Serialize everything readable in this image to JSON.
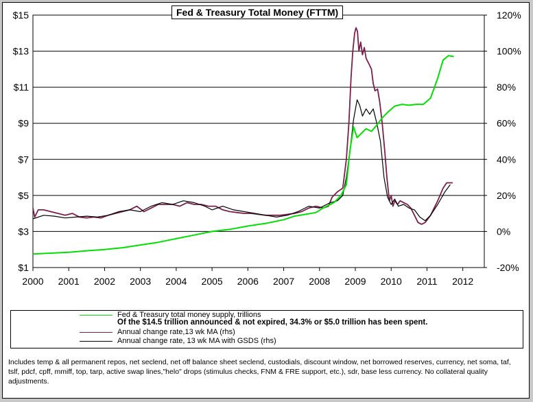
{
  "chart_data": {
    "type": "line",
    "title": "Fed & Treasury Total Money (FTTM)",
    "y_left": {
      "ylim": [
        1,
        15
      ],
      "ticks": [
        "$1",
        "$3",
        "$5",
        "$7",
        "$9",
        "$11",
        "$13",
        "$15"
      ],
      "tick_values": [
        1,
        3,
        5,
        7,
        9,
        11,
        13,
        15
      ]
    },
    "y_right": {
      "ylim": [
        -20,
        120
      ],
      "ticks": [
        "-20%",
        "0%",
        "20%",
        "40%",
        "60%",
        "80%",
        "100%",
        "120%"
      ],
      "tick_values": [
        -20,
        0,
        20,
        40,
        60,
        80,
        100,
        120
      ]
    },
    "x": {
      "xlim": [
        2000,
        2012.6
      ],
      "ticks": [
        "2000",
        "2001",
        "2002",
        "2003",
        "2004",
        "2005",
        "2006",
        "2007",
        "2008",
        "2009",
        "2010",
        "2011",
        "2012"
      ],
      "tick_values": [
        2000,
        2001,
        2002,
        2003,
        2004,
        2005,
        2006,
        2007,
        2008,
        2009,
        2010,
        2011,
        2012
      ]
    },
    "grid": true,
    "series": [
      {
        "name": "Fed & Treasury total money supply, trillions",
        "axis": "left",
        "color": "#00e000",
        "points": [
          [
            2000,
            1.75
          ],
          [
            2000.5,
            1.8
          ],
          [
            2001,
            1.85
          ],
          [
            2001.5,
            1.93
          ],
          [
            2002,
            2.0
          ],
          [
            2002.5,
            2.1
          ],
          [
            2003,
            2.25
          ],
          [
            2003.5,
            2.4
          ],
          [
            2004,
            2.6
          ],
          [
            2004.5,
            2.8
          ],
          [
            2005,
            3.0
          ],
          [
            2005.5,
            3.12
          ],
          [
            2006,
            3.3
          ],
          [
            2006.5,
            3.45
          ],
          [
            2007,
            3.65
          ],
          [
            2007.3,
            3.85
          ],
          [
            2007.6,
            3.95
          ],
          [
            2007.9,
            4.05
          ],
          [
            2008.1,
            4.3
          ],
          [
            2008.4,
            4.6
          ],
          [
            2008.6,
            5.0
          ],
          [
            2008.75,
            5.6
          ],
          [
            2008.85,
            7.5
          ],
          [
            2008.95,
            8.8
          ],
          [
            2009.05,
            8.2
          ],
          [
            2009.15,
            8.4
          ],
          [
            2009.3,
            8.7
          ],
          [
            2009.45,
            8.55
          ],
          [
            2009.6,
            8.9
          ],
          [
            2009.75,
            9.3
          ],
          [
            2009.9,
            9.6
          ],
          [
            2010.1,
            9.95
          ],
          [
            2010.3,
            10.05
          ],
          [
            2010.5,
            10.0
          ],
          [
            2010.7,
            10.05
          ],
          [
            2010.9,
            10.05
          ],
          [
            2011.1,
            10.4
          ],
          [
            2011.3,
            11.5
          ],
          [
            2011.45,
            12.5
          ],
          [
            2011.6,
            12.75
          ],
          [
            2011.75,
            12.7
          ]
        ]
      },
      {
        "name": "Annual change rate,13 wk MA (rhs)",
        "axis": "right",
        "color": "#7b1e4a",
        "points": [
          [
            2000,
            13
          ],
          [
            2000.05,
            8
          ],
          [
            2000.15,
            12
          ],
          [
            2000.3,
            12
          ],
          [
            2000.5,
            11
          ],
          [
            2000.7,
            10
          ],
          [
            2000.9,
            9
          ],
          [
            2001.1,
            10
          ],
          [
            2001.3,
            8
          ],
          [
            2001.5,
            7.5
          ],
          [
            2001.7,
            8
          ],
          [
            2001.9,
            7.5
          ],
          [
            2002.1,
            9
          ],
          [
            2002.3,
            10
          ],
          [
            2002.5,
            11
          ],
          [
            2002.7,
            12
          ],
          [
            2002.9,
            14
          ],
          [
            2003.1,
            11
          ],
          [
            2003.3,
            13
          ],
          [
            2003.5,
            15
          ],
          [
            2003.7,
            15
          ],
          [
            2003.9,
            15
          ],
          [
            2004.1,
            14
          ],
          [
            2004.3,
            16
          ],
          [
            2004.5,
            15
          ],
          [
            2004.7,
            15
          ],
          [
            2004.9,
            14
          ],
          [
            2005.1,
            14
          ],
          [
            2005.3,
            12
          ],
          [
            2005.5,
            11
          ],
          [
            2005.7,
            10.5
          ],
          [
            2005.9,
            10
          ],
          [
            2006.1,
            10
          ],
          [
            2006.3,
            9.5
          ],
          [
            2006.5,
            9
          ],
          [
            2006.7,
            9
          ],
          [
            2006.9,
            9
          ],
          [
            2007.1,
            9.5
          ],
          [
            2007.3,
            10
          ],
          [
            2007.5,
            11
          ],
          [
            2007.7,
            13
          ],
          [
            2007.9,
            14
          ],
          [
            2008.1,
            13
          ],
          [
            2008.25,
            14
          ],
          [
            2008.35,
            19
          ],
          [
            2008.5,
            22
          ],
          [
            2008.65,
            24
          ],
          [
            2008.75,
            40
          ],
          [
            2008.82,
            60
          ],
          [
            2008.88,
            85
          ],
          [
            2008.93,
            100
          ],
          [
            2008.98,
            110
          ],
          [
            2009.02,
            113
          ],
          [
            2009.06,
            111
          ],
          [
            2009.1,
            100
          ],
          [
            2009.15,
            105
          ],
          [
            2009.2,
            98
          ],
          [
            2009.25,
            102
          ],
          [
            2009.3,
            96
          ],
          [
            2009.38,
            93
          ],
          [
            2009.45,
            90
          ],
          [
            2009.5,
            82
          ],
          [
            2009.55,
            78
          ],
          [
            2009.62,
            79
          ],
          [
            2009.68,
            72
          ],
          [
            2009.75,
            60
          ],
          [
            2009.82,
            45
          ],
          [
            2009.88,
            30
          ],
          [
            2009.95,
            17
          ],
          [
            2010.0,
            20
          ],
          [
            2010.05,
            14
          ],
          [
            2010.1,
            17
          ],
          [
            2010.18,
            15
          ],
          [
            2010.25,
            17
          ],
          [
            2010.35,
            16
          ],
          [
            2010.45,
            15
          ],
          [
            2010.55,
            13
          ],
          [
            2010.65,
            9
          ],
          [
            2010.75,
            5
          ],
          [
            2010.85,
            4
          ],
          [
            2010.95,
            5
          ],
          [
            2011.1,
            9
          ],
          [
            2011.3,
            17
          ],
          [
            2011.45,
            24
          ],
          [
            2011.55,
            27
          ],
          [
            2011.65,
            27
          ],
          [
            2011.72,
            27
          ]
        ]
      },
      {
        "name": "Annual change rate, 13 wk MA with GSDS (rhs)",
        "axis": "right",
        "color": "#000000",
        "points": [
          [
            2000,
            7
          ],
          [
            2000.3,
            9
          ],
          [
            2000.6,
            8.5
          ],
          [
            2000.9,
            7.5
          ],
          [
            2001.2,
            8
          ],
          [
            2001.5,
            8.5
          ],
          [
            2001.8,
            8
          ],
          [
            2002.1,
            9
          ],
          [
            2002.4,
            11
          ],
          [
            2002.7,
            12
          ],
          [
            2003.0,
            11
          ],
          [
            2003.3,
            14
          ],
          [
            2003.6,
            16
          ],
          [
            2003.9,
            15
          ],
          [
            2004.2,
            17
          ],
          [
            2004.5,
            16
          ],
          [
            2004.8,
            14
          ],
          [
            2005.0,
            12
          ],
          [
            2005.3,
            14
          ],
          [
            2005.6,
            12
          ],
          [
            2005.9,
            11
          ],
          [
            2006.2,
            10
          ],
          [
            2006.5,
            9
          ],
          [
            2006.8,
            8
          ],
          [
            2007.1,
            9
          ],
          [
            2007.4,
            11
          ],
          [
            2007.7,
            14
          ],
          [
            2008.0,
            13
          ],
          [
            2008.3,
            16
          ],
          [
            2008.5,
            17
          ],
          [
            2008.65,
            20
          ],
          [
            2008.75,
            30
          ],
          [
            2008.85,
            45
          ],
          [
            2008.95,
            62
          ],
          [
            2009.05,
            73
          ],
          [
            2009.12,
            70
          ],
          [
            2009.2,
            64
          ],
          [
            2009.3,
            68
          ],
          [
            2009.4,
            65
          ],
          [
            2009.5,
            68
          ],
          [
            2009.6,
            60
          ],
          [
            2009.7,
            50
          ],
          [
            2009.8,
            30
          ],
          [
            2009.9,
            19
          ],
          [
            2010.0,
            15
          ],
          [
            2010.1,
            18
          ],
          [
            2010.2,
            14
          ],
          [
            2010.35,
            15
          ],
          [
            2010.5,
            13
          ],
          [
            2010.65,
            12
          ],
          [
            2010.8,
            8
          ],
          [
            2010.95,
            6
          ],
          [
            2011.1,
            9
          ],
          [
            2011.3,
            15
          ],
          [
            2011.5,
            22
          ],
          [
            2011.65,
            26
          ]
        ]
      }
    ]
  },
  "legend": {
    "items": [
      {
        "label": "Fed & Treasury total money supply, trillions",
        "color": "#00e000"
      },
      {
        "label": "Annual change rate,13 wk MA (rhs)",
        "color": "#7b1e4a"
      },
      {
        "label": "Annual change rate, 13 wk MA with GSDS (rhs)",
        "color": "#000000"
      }
    ],
    "note": "Of the $14.5 trillion announced & not expired, 34.3% or $5.0 trillion has been spent."
  },
  "footnote": "Includes temp & all permanent repos, net seclend, net off balance sheet seclend, custodials, discount window, net borrowed reserves, currency, net soma, taf, tslf, pdcf, cpff, mmiff, top, tarp, active swap lines,\"helo\" drops (stimulus checks, FNM & FRE support, etc.), sdr, base less currency. No collateral quality adjustments."
}
